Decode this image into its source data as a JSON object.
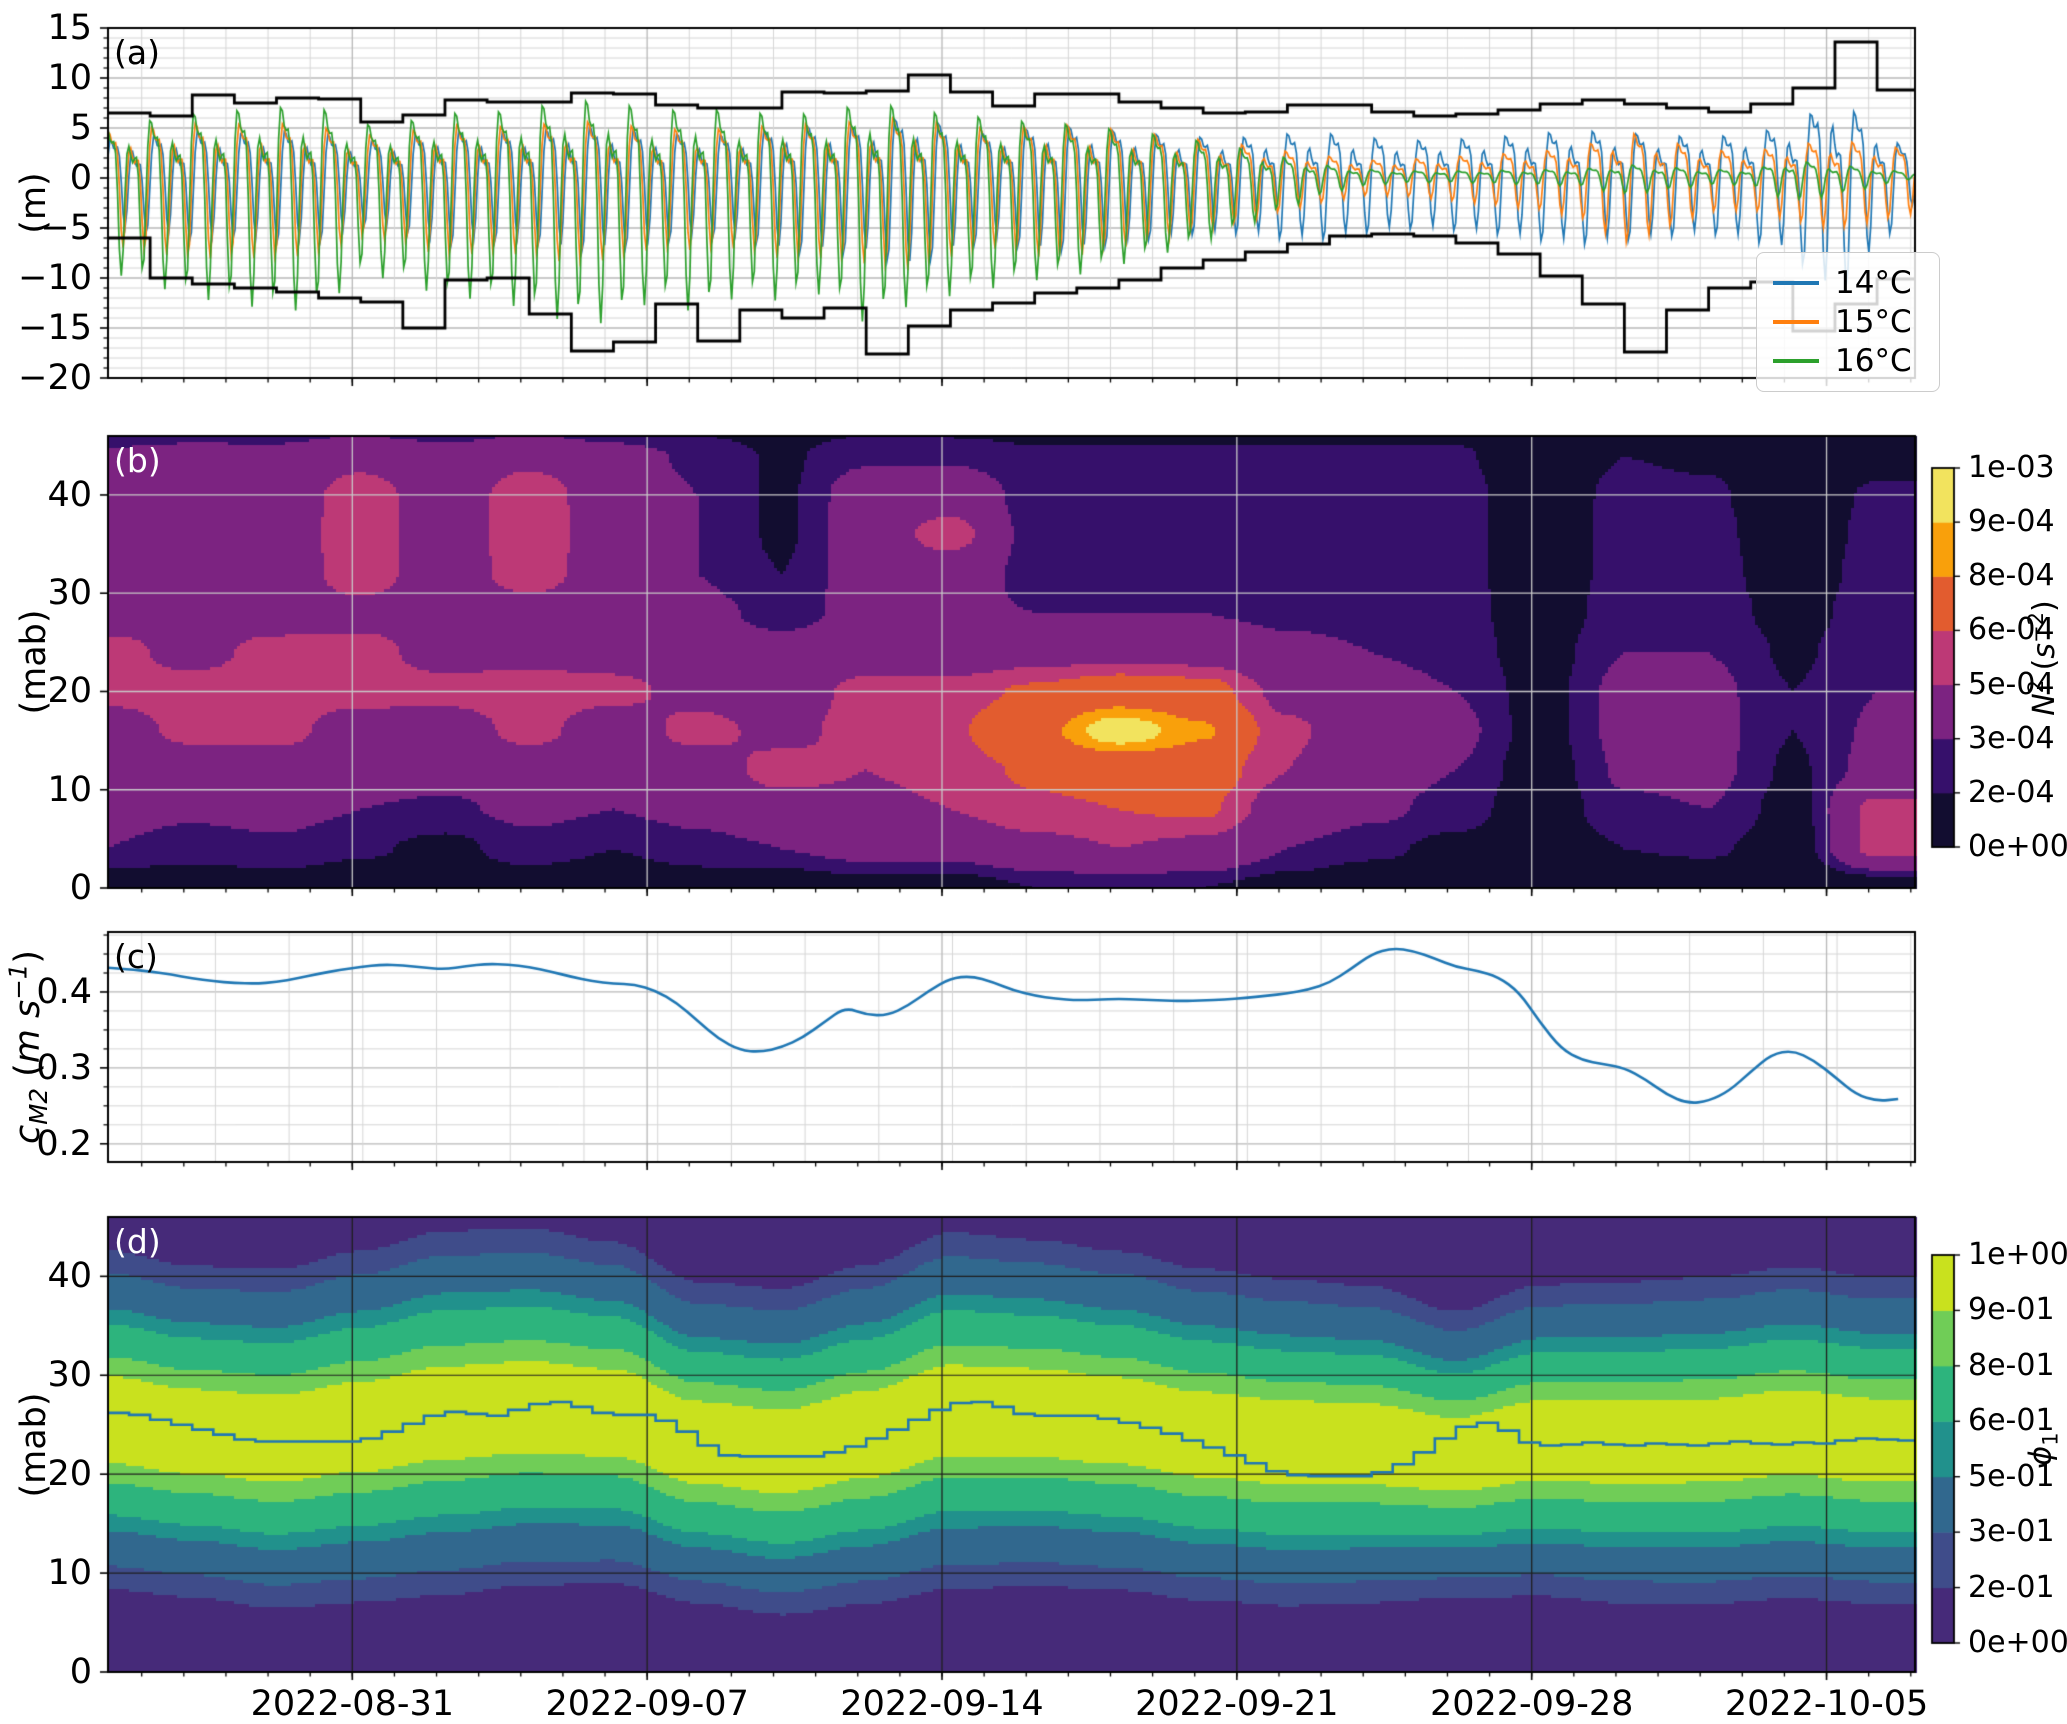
{
  "x_axis": {
    "domain_days": [
      0,
      42.9
    ],
    "tick_days": [
      5.8,
      12.8,
      19.8,
      26.8,
      33.8,
      40.8
    ],
    "tick_labels": [
      "2022-08-31",
      "2022-09-07",
      "2022-09-14",
      "2022-09-21",
      "2022-09-28",
      "2022-10-05"
    ],
    "minor_day_offset": 0.8
  },
  "chart_data": [
    {
      "type": "line",
      "letter": "(a)",
      "ylabel": "(m)",
      "ylim": [
        -20,
        15
      ],
      "yticks": {
        "values": [
          15,
          10,
          5,
          0,
          -5,
          -10,
          -15,
          -20
        ],
        "labels": [
          "15",
          "10",
          "5",
          "0",
          "−5",
          "−10",
          "−15",
          "−20"
        ]
      },
      "legend": [
        {
          "label": "14°C",
          "color": "#1f77b4"
        },
        {
          "label": "15°C",
          "color": "#ff7f0e"
        },
        {
          "label": "16°C",
          "color": "#2ca02c"
        }
      ],
      "tide_model": {
        "period_days": 0.5175,
        "diurnal_period_days": 1.0351,
        "harmonic_coefs": [
          0.58,
          0.27,
          0.15
        ]
      },
      "series": [
        {
          "label": "14°C",
          "color": "#1f77b4",
          "phase": 0.0,
          "mean": 0.4,
          "down_scale": 1.15,
          "daily_amplitude": [
            5.5,
            6.0,
            6.8,
            6.5,
            7.0,
            6.8,
            5.2,
            5.8,
            7.2,
            6.8,
            6.8,
            7.8,
            7.6,
            6.8,
            6.4,
            6.4,
            7.8,
            7.8,
            8.0,
            9.4,
            7.8,
            6.5,
            7.7,
            7.7,
            7.0,
            6.4,
            6.0,
            6.0,
            6.6,
            6.6,
            5.9,
            5.5,
            5.7,
            6.1,
            6.7,
            7.1,
            6.7,
            6.3,
            6.0,
            6.7,
            8.0,
            12.5,
            7.5
          ]
        },
        {
          "label": "15°C",
          "color": "#ff7f0e",
          "phase": 0.55,
          "mean": 0.5,
          "down_scale": 1.3,
          "daily_amplitude": [
            6.5,
            7.2,
            7.8,
            7.6,
            7.8,
            7.3,
            5.8,
            6.4,
            7.6,
            7.2,
            7.4,
            8.2,
            7.8,
            6.8,
            7.0,
            6.8,
            7.8,
            7.7,
            8.2,
            8.8,
            7.6,
            6.8,
            7.6,
            7.5,
            6.8,
            6.0,
            5.2,
            4.4,
            3.4,
            2.6,
            2.0,
            2.2,
            2.6,
            3.0,
            3.4,
            4.2,
            6.5,
            5.0,
            3.6,
            3.4,
            4.4,
            5.2,
            4.4
          ]
        },
        {
          "label": "16°C",
          "color": "#2ca02c",
          "phase": 1.05,
          "mean": 0.3,
          "down_scale": 1.45,
          "daily_amplitude": [
            7.5,
            8.5,
            9.5,
            10.0,
            10.5,
            10.5,
            7.8,
            8.2,
            9.6,
            9.6,
            10.5,
            11.5,
            11.5,
            9.6,
            10.8,
            9.4,
            9.8,
            9.2,
            11.6,
            10.2,
            9.4,
            8.8,
            8.2,
            7.8,
            7.0,
            6.2,
            5.2,
            4.0,
            2.6,
            1.4,
            0.8,
            0.6,
            0.6,
            0.7,
            0.8,
            0.9,
            1.6,
            1.2,
            0.8,
            0.8,
            2.2,
            1.6,
            0.9
          ]
        }
      ],
      "envelope": {
        "color": "#000000",
        "upper": [
          6.5,
          6.2,
          8.3,
          7.5,
          8.0,
          7.9,
          5.6,
          6.3,
          7.8,
          7.6,
          7.6,
          8.5,
          8.4,
          7.3,
          7.0,
          7.0,
          8.6,
          8.5,
          8.7,
          10.3,
          8.6,
          7.2,
          8.4,
          8.4,
          7.6,
          7.0,
          6.5,
          6.6,
          7.3,
          7.3,
          6.6,
          6.2,
          6.4,
          6.8,
          7.4,
          7.8,
          7.4,
          7.0,
          6.6,
          7.4,
          9.0,
          13.6,
          8.8
        ],
        "lower": [
          -6.0,
          -10.0,
          -10.6,
          -11.0,
          -11.4,
          -12.0,
          -12.4,
          -15.0,
          -10.2,
          -10.0,
          -13.6,
          -17.3,
          -16.4,
          -12.6,
          -16.3,
          -13.2,
          -14.0,
          -13.0,
          -17.6,
          -14.8,
          -13.2,
          -12.5,
          -11.5,
          -11.0,
          -10.2,
          -9.0,
          -8.2,
          -7.4,
          -6.6,
          -5.8,
          -5.6,
          -5.8,
          -6.5,
          -7.6,
          -9.8,
          -12.6,
          -17.4,
          -13.2,
          -11.0,
          -10.4,
          -15.3,
          -12.6,
          -10.1
        ]
      }
    },
    {
      "type": "heatmap",
      "letter": "(b)",
      "ylabel": "(mab)",
      "ylim": [
        0,
        46
      ],
      "yticks": {
        "values": [
          0,
          10,
          20,
          30,
          40
        ],
        "labels": [
          "0",
          "10",
          "20",
          "30",
          "40"
        ]
      },
      "level_values_1e4": [
        0,
        2,
        3,
        5,
        6,
        8,
        9,
        10
      ],
      "colors": [
        "#120d30",
        "#36106b",
        "#7c2381",
        "#bd3976",
        "#e25c2f",
        "#f9a00b",
        "#f2e35e"
      ],
      "colorbar": {
        "tick_labels": [
          "0e+00",
          "2e-04",
          "3e-04",
          "5e-04",
          "6e-04",
          "8e-04",
          "9e-04",
          "1e-03"
        ],
        "title_segments": [
          {
            "text": "N",
            "italic": true
          },
          {
            "text": "2",
            "sup": true
          },
          {
            "text": " ("
          },
          {
            "text": "s",
            "italic": true
          },
          {
            "text": "−2",
            "sup": true
          },
          {
            "text": ")"
          }
        ]
      },
      "grid": {
        "t_days": [
          0,
          2,
          4,
          6,
          8,
          10,
          12,
          14,
          16,
          18,
          20,
          22,
          24,
          26,
          28,
          30,
          32,
          34,
          36,
          38,
          40,
          42
        ],
        "z_mab": [
          0,
          4,
          8,
          12,
          16,
          20,
          24,
          28,
          32,
          36,
          40,
          44,
          48
        ],
        "values_1e4": [
          [
            1.0,
            3.0,
            3.5,
            3.8,
            4.0,
            5.5,
            5.5,
            4.2,
            4.0,
            4.0,
            4.0,
            3.2,
            1.4
          ],
          [
            1.0,
            2.5,
            3.2,
            3.6,
            5.5,
            5.6,
            4.5,
            4.1,
            4.0,
            4.0,
            4.0,
            3.5,
            1.4
          ],
          [
            1.2,
            2.8,
            3.4,
            3.7,
            5.6,
            5.8,
            5.5,
            4.2,
            4.0,
            4.0,
            4.0,
            3.4,
            1.5
          ],
          [
            1.0,
            2.2,
            3.0,
            3.6,
            4.0,
            5.6,
            5.5,
            4.5,
            5.7,
            5.8,
            5.7,
            4.5,
            1.5
          ],
          [
            0.8,
            1.6,
            2.8,
            3.5,
            4.0,
            5.5,
            4.4,
            4.1,
            4.0,
            4.0,
            4.0,
            3.5,
            1.4
          ],
          [
            1.0,
            2.6,
            3.3,
            3.8,
            5.5,
            5.7,
            4.5,
            4.2,
            5.7,
            5.9,
            5.8,
            4.6,
            1.5
          ],
          [
            0.8,
            2.0,
            3.0,
            3.5,
            4.0,
            5.4,
            4.4,
            4.0,
            4.0,
            4.0,
            4.0,
            3.5,
            1.4
          ],
          [
            1.2,
            2.6,
            3.4,
            4.0,
            5.5,
            4.5,
            4.0,
            3.4,
            3.0,
            3.0,
            3.0,
            2.8,
            1.2
          ],
          [
            1.0,
            3.0,
            4.2,
            5.6,
            4.5,
            4.0,
            3.5,
            2.6,
            2.0,
            1.8,
            1.8,
            1.8,
            1.0
          ],
          [
            1.5,
            3.5,
            4.5,
            5.0,
            5.6,
            5.5,
            4.0,
            3.4,
            3.8,
            4.0,
            3.8,
            2.8,
            1.2
          ],
          [
            1.2,
            3.6,
            5.0,
            5.5,
            5.8,
            5.5,
            4.0,
            3.2,
            4.0,
            5.6,
            4.2,
            2.8,
            1.0
          ],
          [
            2.0,
            4.5,
            5.8,
            6.2,
            7.4,
            6.2,
            4.4,
            3.0,
            2.6,
            2.5,
            2.5,
            2.2,
            1.0
          ],
          [
            2.2,
            5.0,
            6.0,
            6.6,
            9.8,
            7.0,
            4.5,
            3.0,
            2.5,
            2.5,
            2.5,
            2.2,
            1.0
          ],
          [
            2.0,
            4.6,
            6.2,
            6.8,
            8.2,
            6.6,
            4.4,
            3.0,
            2.5,
            2.5,
            2.5,
            2.2,
            1.0
          ],
          [
            1.4,
            3.0,
            4.2,
            5.0,
            5.2,
            4.6,
            3.4,
            2.7,
            2.5,
            2.5,
            2.5,
            2.2,
            1.0
          ],
          [
            0.9,
            2.3,
            3.3,
            3.7,
            4.2,
            3.7,
            3.0,
            2.6,
            2.5,
            2.5,
            2.5,
            2.2,
            1.0
          ],
          [
            0.8,
            1.6,
            2.6,
            3.0,
            3.4,
            3.0,
            2.6,
            2.5,
            2.5,
            2.5,
            2.5,
            2.2,
            1.0
          ],
          [
            0.5,
            0.9,
            1.1,
            1.3,
            1.5,
            1.5,
            1.4,
            1.2,
            1.0,
            1.0,
            1.0,
            0.9,
            0.5
          ],
          [
            0.8,
            2.0,
            2.8,
            3.2,
            3.4,
            3.4,
            3.0,
            2.6,
            2.5,
            2.5,
            2.4,
            2.0,
            0.8
          ],
          [
            0.8,
            2.2,
            3.0,
            3.4,
            3.5,
            3.4,
            3.0,
            2.6,
            2.5,
            2.4,
            2.2,
            1.8,
            0.8
          ],
          [
            0.6,
            1.2,
            1.5,
            1.8,
            2.0,
            2.0,
            1.8,
            1.5,
            1.2,
            1.0,
            1.0,
            0.8,
            0.5
          ],
          [
            1.0,
            5.5,
            5.4,
            3.5,
            3.2,
            3.0,
            2.8,
            2.6,
            2.5,
            2.4,
            2.2,
            1.5,
            0.8
          ]
        ]
      }
    },
    {
      "type": "line",
      "letter": "(c)",
      "ylabel_segments": [
        {
          "text": "c",
          "italic": true
        },
        {
          "text": "M2",
          "sub": true,
          "italic": true
        },
        {
          "text": " ("
        },
        {
          "text": "m s",
          "italic": true
        },
        {
          "text": "−1",
          "sup": true,
          "italic": true
        },
        {
          "text": ")"
        }
      ],
      "ylim": [
        0.176,
        0.479
      ],
      "yticks": {
        "values": [
          0.2,
          0.3,
          0.4
        ],
        "labels": [
          "0.2",
          "0.3",
          "0.4"
        ]
      },
      "minor_step": 0.025,
      "minor_day_step": 1.75,
      "color": "#1f77b4",
      "dt_days": 0.5,
      "values": [
        0.432,
        0.43,
        0.427,
        0.423,
        0.418,
        0.414,
        0.412,
        0.411,
        0.413,
        0.418,
        0.424,
        0.429,
        0.433,
        0.436,
        0.435,
        0.432,
        0.43,
        0.434,
        0.437,
        0.436,
        0.433,
        0.427,
        0.42,
        0.414,
        0.411,
        0.41,
        0.402,
        0.386,
        0.362,
        0.338,
        0.323,
        0.321,
        0.327,
        0.34,
        0.36,
        0.38,
        0.37,
        0.369,
        0.382,
        0.402,
        0.418,
        0.421,
        0.413,
        0.402,
        0.395,
        0.391,
        0.389,
        0.39,
        0.391,
        0.39,
        0.389,
        0.388,
        0.389,
        0.39,
        0.392,
        0.395,
        0.398,
        0.403,
        0.412,
        0.43,
        0.45,
        0.458,
        0.454,
        0.444,
        0.433,
        0.428,
        0.42,
        0.4,
        0.36,
        0.325,
        0.31,
        0.305,
        0.3,
        0.285,
        0.265,
        0.253,
        0.256,
        0.27,
        0.295,
        0.318,
        0.323,
        0.31,
        0.288,
        0.265,
        0.256,
        0.259
      ]
    },
    {
      "type": "contourf",
      "letter": "(d)",
      "ylabel": "(mab)",
      "ylim": [
        0,
        46
      ],
      "yticks": {
        "values": [
          0,
          10,
          20,
          30,
          40
        ],
        "labels": [
          "0",
          "10",
          "20",
          "30",
          "40"
        ]
      },
      "levels": [
        0,
        0.2,
        0.3,
        0.5,
        0.6,
        0.8,
        0.9,
        1.0
      ],
      "colors": [
        "#462a79",
        "#3f4c8a",
        "#31688e",
        "#21918c",
        "#2db47d",
        "#70cd57",
        "#c9e11e"
      ],
      "colorbar": {
        "tick_labels": [
          "0e+00",
          "2e-01",
          "3e-01",
          "5e-01",
          "6e-01",
          "8e-01",
          "9e-01",
          "1e+00"
        ],
        "title_segments": [
          {
            "text": "ϕ",
            "italic": true
          },
          {
            "text": "1",
            "sub": true
          }
        ]
      },
      "profile": {
        "t_days": [
          0,
          2,
          4,
          6,
          8,
          10,
          12,
          14,
          16,
          18,
          20,
          22,
          24,
          26,
          28,
          30,
          32,
          34,
          36,
          38,
          40,
          42
        ],
        "center_mab": [
          25.5,
          24.3,
          23.6,
          24.8,
          26.2,
          26.8,
          26.2,
          23.2,
          22.3,
          24.0,
          26.4,
          26.2,
          25.4,
          24.0,
          23.2,
          23.0,
          22.0,
          23.4,
          23.2,
          23.4,
          24.2,
          23.4
        ],
        "sigma_mab": [
          13.5,
          13.2,
          13.5,
          14.0,
          14.5,
          14.2,
          13.6,
          12.8,
          13.0,
          13.5,
          14.2,
          13.8,
          13.5,
          13.2,
          13.0,
          12.6,
          11.4,
          12.4,
          12.8,
          13.0,
          13.2,
          13.0
        ]
      },
      "overlay_line": {
        "color": "#1f77b4",
        "dt_days": 0.5,
        "values": [
          26.2,
          26.0,
          25.5,
          25.0,
          24.5,
          24.0,
          23.5,
          23.3,
          23.3,
          23.3,
          23.3,
          23.3,
          23.6,
          24.3,
          25.1,
          25.9,
          26.3,
          26.1,
          25.9,
          26.5,
          27.1,
          27.3,
          26.8,
          26.2,
          26.0,
          26.0,
          25.4,
          24.3,
          22.9,
          21.9,
          21.8,
          21.8,
          21.8,
          21.8,
          22.2,
          22.8,
          23.6,
          24.5,
          25.5,
          26.5,
          27.2,
          27.3,
          26.8,
          26.1,
          25.9,
          25.9,
          25.9,
          25.6,
          25.2,
          24.7,
          24.1,
          23.4,
          22.7,
          21.9,
          21.1,
          20.3,
          19.9,
          19.8,
          19.8,
          19.8,
          20.2,
          21.0,
          22.2,
          23.6,
          24.8,
          25.2,
          24.4,
          23.2,
          22.9,
          23.0,
          23.2,
          23.0,
          22.9,
          23.1,
          23.0,
          22.9,
          23.1,
          23.3,
          23.1,
          23.0,
          23.2,
          23.1,
          23.4,
          23.6,
          23.5,
          23.4
        ]
      }
    }
  ],
  "style_colors": {
    "minor_grid": "#d6d6d6",
    "major_grid": "#b8b8b8",
    "heatmap_grid": "#c9c9c9",
    "contour_grid": "#1f1f1f",
    "spine": "#000000"
  }
}
